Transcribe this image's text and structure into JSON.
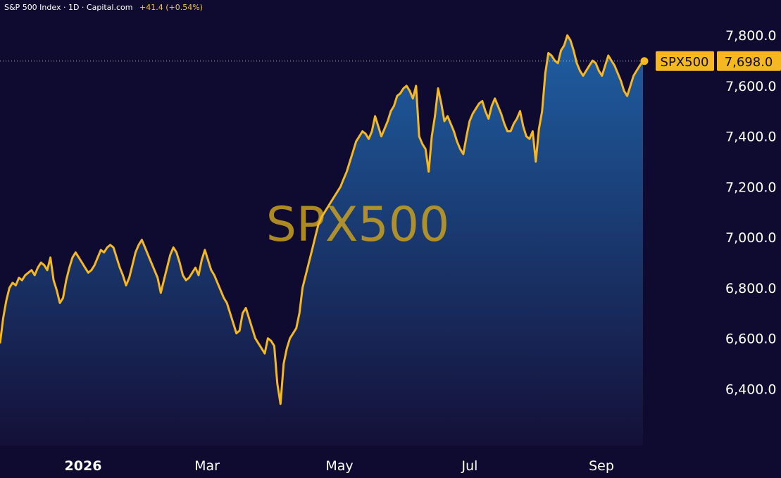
{
  "header": {
    "title": "S&P 500 Index · 1D · Capital.com",
    "change": "+41.4 (+0.54%)"
  },
  "watermark": "SPX500",
  "price_tag": {
    "symbol": "SPX500",
    "value": "7,698.0"
  },
  "colors": {
    "background": "#0f0a30",
    "line": "#f5b820",
    "fill_top": "#1f5fa3",
    "fill_bottom": "#141038",
    "tag_bg": "#f5b820",
    "tag_text": "#0f0a30"
  },
  "chart_data": {
    "type": "area",
    "title": "S&P 500 Index · 1D · Capital.com",
    "xlabel": "",
    "ylabel": "",
    "x_ticks": [
      "2026",
      "Mar",
      "May",
      "Jul",
      "Sep"
    ],
    "y_ticks": [
      "6,400.0",
      "6,600.0",
      "6,800.0",
      "7,000.0",
      "7,200.0",
      "7,400.0",
      "7,600.0",
      "7,800.0"
    ],
    "y_tick_values": [
      6400,
      6600,
      6800,
      7000,
      7200,
      7400,
      7600,
      7800
    ],
    "ylim": [
      6175,
      7940
    ],
    "last_value": 7698.0,
    "grid": false,
    "series": [
      {
        "name": "SPX500",
        "values": [
          6580,
          6680,
          6750,
          6800,
          6820,
          6810,
          6840,
          6830,
          6850,
          6860,
          6870,
          6850,
          6880,
          6900,
          6890,
          6870,
          6920,
          6830,
          6790,
          6740,
          6760,
          6830,
          6880,
          6920,
          6940,
          6920,
          6900,
          6880,
          6860,
          6870,
          6890,
          6920,
          6950,
          6940,
          6960,
          6970,
          6960,
          6920,
          6880,
          6850,
          6810,
          6840,
          6890,
          6940,
          6970,
          6990,
          6960,
          6930,
          6900,
          6870,
          6840,
          6780,
          6830,
          6880,
          6930,
          6960,
          6940,
          6900,
          6850,
          6830,
          6840,
          6860,
          6880,
          6850,
          6910,
          6950,
          6910,
          6870,
          6850,
          6820,
          6790,
          6760,
          6740,
          6700,
          6660,
          6620,
          6630,
          6700,
          6720,
          6680,
          6640,
          6600,
          6580,
          6560,
          6540,
          6600,
          6590,
          6570,
          6420,
          6340,
          6500,
          6560,
          6600,
          6620,
          6640,
          6700,
          6800,
          6850,
          6900,
          6950,
          7000,
          7050,
          7080,
          7100,
          7120,
          7140,
          7160,
          7180,
          7200,
          7230,
          7260,
          7300,
          7340,
          7380,
          7400,
          7420,
          7410,
          7390,
          7420,
          7480,
          7440,
          7400,
          7430,
          7460,
          7500,
          7520,
          7560,
          7570,
          7590,
          7600,
          7580,
          7550,
          7600,
          7400,
          7370,
          7350,
          7260,
          7400,
          7480,
          7590,
          7530,
          7460,
          7480,
          7450,
          7420,
          7380,
          7350,
          7330,
          7400,
          7460,
          7490,
          7510,
          7530,
          7540,
          7500,
          7470,
          7520,
          7550,
          7520,
          7490,
          7450,
          7420,
          7420,
          7450,
          7470,
          7500,
          7440,
          7400,
          7390,
          7420,
          7300,
          7430,
          7500,
          7650,
          7730,
          7720,
          7700,
          7690,
          7740,
          7760,
          7800,
          7780,
          7740,
          7690,
          7660,
          7640,
          7660,
          7680,
          7700,
          7690,
          7660,
          7640,
          7680,
          7720,
          7700,
          7680,
          7650,
          7620,
          7580,
          7560,
          7600,
          7640,
          7660,
          7680,
          7698
        ]
      }
    ]
  }
}
